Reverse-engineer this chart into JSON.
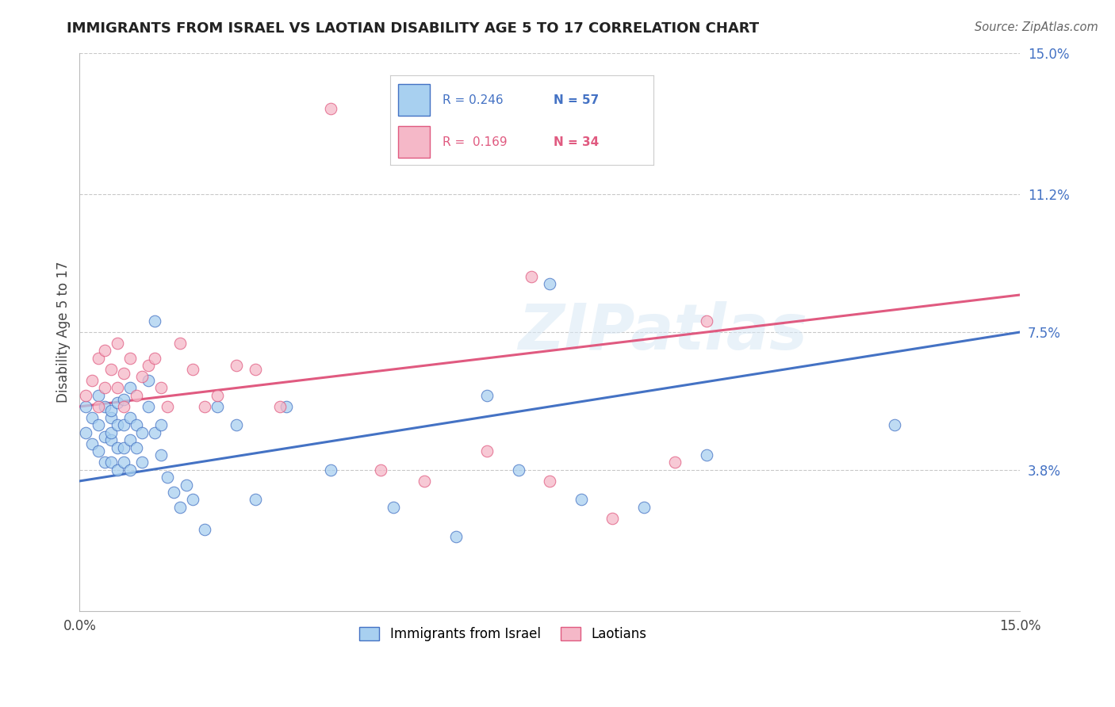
{
  "title": "IMMIGRANTS FROM ISRAEL VS LAOTIAN DISABILITY AGE 5 TO 17 CORRELATION CHART",
  "source": "Source: ZipAtlas.com",
  "ylabel": "Disability Age 5 to 17",
  "x_min": 0.0,
  "x_max": 0.15,
  "y_min": 0.0,
  "y_max": 0.15,
  "y_tick_labels_right": [
    "3.8%",
    "7.5%",
    "11.2%",
    "15.0%"
  ],
  "y_tick_values_right": [
    0.038,
    0.075,
    0.112,
    0.15
  ],
  "legend_israel_label": "Immigrants from Israel",
  "legend_laotian_label": "Laotians",
  "r_israel": "0.246",
  "n_israel": "57",
  "r_laotian": "0.169",
  "n_laotian": "34",
  "color_israel": "#A8D0F0",
  "color_laotian": "#F5B8C8",
  "color_israel_line": "#4472C4",
  "color_laotian_line": "#E05A80",
  "watermark": "ZIPatlas",
  "israel_line_start": 0.035,
  "israel_line_end": 0.075,
  "laotian_line_start": 0.055,
  "laotian_line_end": 0.085,
  "israel_x": [
    0.001,
    0.001,
    0.002,
    0.002,
    0.003,
    0.003,
    0.003,
    0.004,
    0.004,
    0.004,
    0.005,
    0.005,
    0.005,
    0.005,
    0.005,
    0.006,
    0.006,
    0.006,
    0.006,
    0.007,
    0.007,
    0.007,
    0.007,
    0.008,
    0.008,
    0.008,
    0.008,
    0.009,
    0.009,
    0.01,
    0.01,
    0.011,
    0.011,
    0.012,
    0.012,
    0.013,
    0.013,
    0.014,
    0.015,
    0.016,
    0.017,
    0.018,
    0.02,
    0.022,
    0.025,
    0.028,
    0.033,
    0.04,
    0.05,
    0.06,
    0.065,
    0.07,
    0.075,
    0.08,
    0.09,
    0.1,
    0.13
  ],
  "israel_y": [
    0.055,
    0.048,
    0.052,
    0.045,
    0.058,
    0.05,
    0.043,
    0.055,
    0.047,
    0.04,
    0.052,
    0.046,
    0.04,
    0.054,
    0.048,
    0.05,
    0.044,
    0.038,
    0.056,
    0.05,
    0.044,
    0.057,
    0.04,
    0.052,
    0.046,
    0.038,
    0.06,
    0.05,
    0.044,
    0.048,
    0.04,
    0.055,
    0.062,
    0.048,
    0.078,
    0.042,
    0.05,
    0.036,
    0.032,
    0.028,
    0.034,
    0.03,
    0.022,
    0.055,
    0.05,
    0.03,
    0.055,
    0.038,
    0.028,
    0.02,
    0.058,
    0.038,
    0.088,
    0.03,
    0.028,
    0.042,
    0.05
  ],
  "laotian_x": [
    0.001,
    0.002,
    0.003,
    0.003,
    0.004,
    0.004,
    0.005,
    0.006,
    0.006,
    0.007,
    0.007,
    0.008,
    0.009,
    0.01,
    0.011,
    0.012,
    0.013,
    0.014,
    0.016,
    0.018,
    0.02,
    0.022,
    0.025,
    0.028,
    0.032,
    0.04,
    0.048,
    0.055,
    0.065,
    0.072,
    0.075,
    0.085,
    0.095,
    0.1
  ],
  "laotian_y": [
    0.058,
    0.062,
    0.055,
    0.068,
    0.06,
    0.07,
    0.065,
    0.072,
    0.06,
    0.064,
    0.055,
    0.068,
    0.058,
    0.063,
    0.066,
    0.068,
    0.06,
    0.055,
    0.072,
    0.065,
    0.055,
    0.058,
    0.066,
    0.065,
    0.055,
    0.135,
    0.038,
    0.035,
    0.043,
    0.09,
    0.035,
    0.025,
    0.04,
    0.078
  ]
}
